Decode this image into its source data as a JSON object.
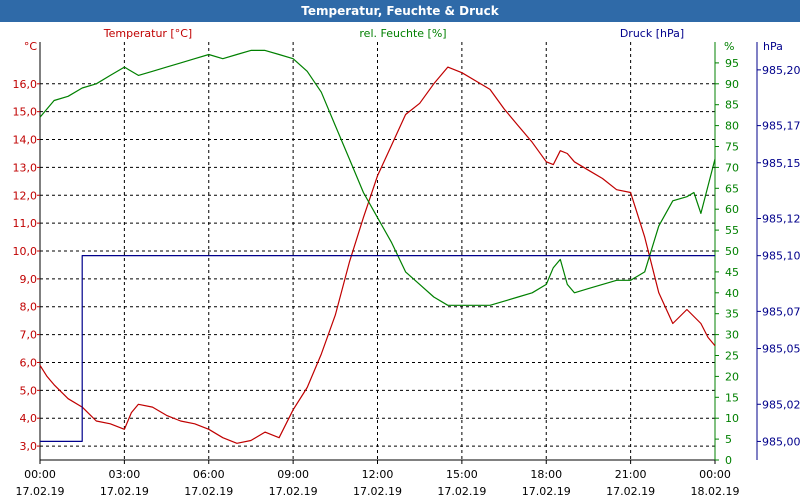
{
  "window": {
    "title": "Temperatur, Feuchte & Druck"
  },
  "chart_data": {
    "type": "line",
    "title": "Temperatur, Feuchte & Druck",
    "grid": true,
    "x": {
      "ticks": [
        {
          "time": "00:00",
          "date": "17.02.19"
        },
        {
          "time": "03:00",
          "date": "17.02.19"
        },
        {
          "time": "06:00",
          "date": "17.02.19"
        },
        {
          "time": "09:00",
          "date": "17.02.19"
        },
        {
          "time": "12:00",
          "date": "17.02.19"
        },
        {
          "time": "15:00",
          "date": "17.02.19"
        },
        {
          "time": "18:00",
          "date": "17.02.19"
        },
        {
          "time": "21:00",
          "date": "17.02.19"
        },
        {
          "time": "00:00",
          "date": "18.02.19"
        }
      ],
      "range_hours": [
        0,
        24
      ]
    },
    "axes": {
      "temperature": {
        "label": "Temperatur [°C]",
        "unit": "°C",
        "color": "#c00000",
        "ylim": [
          2.5,
          17.5
        ],
        "ticks": [
          "3,0",
          "4,0",
          "5,0",
          "6,0",
          "7,0",
          "8,0",
          "9,0",
          "10,0",
          "11,0",
          "12,0",
          "13,0",
          "14,0",
          "15,0",
          "16,0"
        ]
      },
      "humidity": {
        "label": "rel. Feuchte [%]",
        "unit": "%",
        "color": "#008000",
        "ylim": [
          0,
          100
        ],
        "ticks": [
          "0",
          "5",
          "10",
          "15",
          "20",
          "25",
          "30",
          "35",
          "40",
          "45",
          "50",
          "55",
          "60",
          "65",
          "70",
          "75",
          "80",
          "85",
          "90",
          "95"
        ]
      },
      "pressure": {
        "label": "Druck [hPa]",
        "unit": "hPa",
        "color": "#00008b",
        "ylim": [
          984.99,
          985.215
        ],
        "ticks": [
          "985,00",
          "985,02",
          "985,05",
          "985,07",
          "985,10",
          "985,12",
          "985,15",
          "985,17",
          "985,20"
        ]
      }
    },
    "series": [
      {
        "name": "Temperatur [°C]",
        "axis": "temperature",
        "color": "#c00000",
        "x": [
          0,
          0.25,
          0.5,
          1,
          1.5,
          2,
          2.5,
          3,
          3.25,
          3.5,
          4,
          4.5,
          5,
          5.5,
          6,
          6.5,
          7,
          7.5,
          8,
          8.5,
          9,
          9.5,
          10,
          10.5,
          11,
          11.5,
          12,
          12.5,
          13,
          13.5,
          14,
          14.5,
          15,
          15.5,
          16,
          16.5,
          17,
          17.5,
          18,
          18.25,
          18.5,
          18.75,
          19,
          19.5,
          20,
          20.5,
          21,
          21.5,
          22,
          22.5,
          23,
          23.5,
          23.75,
          24
        ],
        "y": [
          5.9,
          5.5,
          5.2,
          4.7,
          4.4,
          3.9,
          3.8,
          3.6,
          4.2,
          4.5,
          4.4,
          4.1,
          3.9,
          3.8,
          3.6,
          3.3,
          3.1,
          3.2,
          3.5,
          3.3,
          4.3,
          5.1,
          6.3,
          7.7,
          9.6,
          11.2,
          12.7,
          13.8,
          14.9,
          15.3,
          16.0,
          16.6,
          16.4,
          16.1,
          15.8,
          15.1,
          14.5,
          13.9,
          13.2,
          13.1,
          13.6,
          13.5,
          13.2,
          12.9,
          12.6,
          12.2,
          12.1,
          10.5,
          8.5,
          7.4,
          7.9,
          7.4,
          6.9,
          6.6
        ]
      },
      {
        "name": "rel. Feuchte [%]",
        "axis": "humidity",
        "color": "#008000",
        "x": [
          0,
          0.5,
          1,
          1.5,
          2,
          2.5,
          3,
          3.5,
          4,
          4.5,
          5,
          5.5,
          6,
          6.5,
          7,
          7.5,
          8,
          8.5,
          9,
          9.5,
          10,
          10.5,
          11,
          11.5,
          12,
          12.5,
          13,
          13.5,
          14,
          14.5,
          15,
          15.5,
          16,
          16.5,
          17,
          17.5,
          18,
          18.25,
          18.5,
          18.75,
          19,
          19.5,
          20,
          20.5,
          21,
          21.5,
          22,
          22.5,
          23,
          23.25,
          23.5,
          24
        ],
        "y": [
          82,
          86,
          87,
          89,
          90,
          92,
          94,
          92,
          93,
          94,
          95,
          96,
          97,
          96,
          97,
          98,
          98,
          97,
          96,
          93,
          88,
          80,
          72,
          64,
          58,
          52,
          45,
          42,
          39,
          37,
          37,
          37,
          37,
          38,
          39,
          40,
          42,
          46,
          48,
          42,
          40,
          41,
          42,
          43,
          43,
          45,
          56,
          62,
          63,
          64,
          59,
          72
        ]
      },
      {
        "name": "Druck [hPa]",
        "axis": "pressure",
        "color": "#00008b",
        "x": [
          0,
          1.5,
          1.5,
          24
        ],
        "y": [
          985.0,
          985.0,
          985.1,
          985.1
        ]
      }
    ]
  }
}
